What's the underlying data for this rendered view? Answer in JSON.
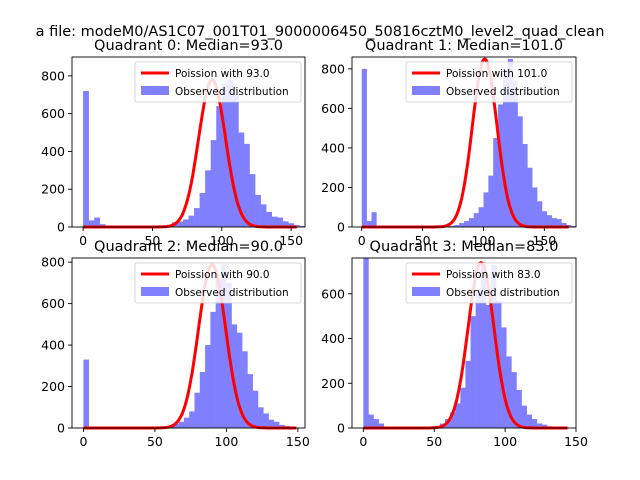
{
  "suptitle": "a file: modeM0/AS1C07_001T01_9000006450_50816cztM0_level2_quad_clean",
  "chart_data": [
    {
      "type": "bar",
      "title": "Quadrant 0: Median=93.0",
      "fit_label": "Poission with 93.0",
      "hist_label": "Observed distribution",
      "median": 93.0,
      "xlim": [
        -8,
        160
      ],
      "ylim": [
        0,
        900
      ],
      "xticks": [
        0,
        50,
        100,
        150
      ],
      "yticks": [
        0,
        200,
        400,
        600,
        800
      ],
      "bin_start": 0,
      "bin_width": 4,
      "values": [
        720,
        35,
        50,
        15,
        2,
        2,
        2,
        3,
        2,
        3,
        5,
        5,
        5,
        3,
        5,
        10,
        25,
        30,
        40,
        60,
        100,
        180,
        300,
        460,
        640,
        760,
        780,
        700,
        500,
        440,
        280,
        170,
        120,
        80,
        55,
        50,
        30,
        20,
        10,
        5
      ],
      "series": [
        {
          "name": "Poission with 93.0",
          "color": "#ff0000",
          "kind": "line"
        },
        {
          "name": "Observed distribution",
          "color": "#8080ff",
          "kind": "bar"
        }
      ]
    },
    {
      "type": "bar",
      "title": "Quadrant 1: Median=101.0",
      "fit_label": "Poission with 101.0",
      "hist_label": "Observed distribution",
      "median": 101.0,
      "xlim": [
        -8,
        176
      ],
      "ylim": [
        0,
        860
      ],
      "xticks": [
        0,
        50,
        100,
        150
      ],
      "yticks": [
        0,
        200,
        400,
        600,
        800
      ],
      "bin_start": 0,
      "bin_width": 4,
      "values": [
        800,
        30,
        75,
        5,
        2,
        2,
        2,
        2,
        2,
        2,
        3,
        3,
        3,
        3,
        3,
        3,
        3,
        3,
        5,
        10,
        20,
        30,
        45,
        70,
        100,
        175,
        260,
        450,
        620,
        800,
        850,
        740,
        560,
        420,
        300,
        200,
        130,
        80,
        60,
        45,
        40,
        20,
        10,
        5
      ],
      "series": [
        {
          "name": "Poission with 101.0",
          "color": "#ff0000",
          "kind": "line"
        },
        {
          "name": "Observed distribution",
          "color": "#8080ff",
          "kind": "bar"
        }
      ]
    },
    {
      "type": "bar",
      "title": "Quadrant 2: Median=90.0",
      "fit_label": "Poission with 90.0",
      "hist_label": "Observed distribution",
      "median": 90.0,
      "xlim": [
        -8,
        155
      ],
      "ylim": [
        0,
        820
      ],
      "xticks": [
        0,
        50,
        100,
        150
      ],
      "yticks": [
        0,
        200,
        400,
        600,
        800
      ],
      "bin_start": 0,
      "bin_width": 3.7,
      "values": [
        330,
        3,
        2,
        2,
        2,
        2,
        2,
        2,
        2,
        2,
        2,
        2,
        2,
        2,
        3,
        5,
        10,
        20,
        30,
        50,
        80,
        170,
        270,
        400,
        560,
        720,
        790,
        700,
        500,
        460,
        370,
        260,
        180,
        100,
        70,
        40,
        30,
        15,
        10,
        5
      ],
      "series": [
        {
          "name": "Poission with 90.0",
          "color": "#ff0000",
          "kind": "line"
        },
        {
          "name": "Observed distribution",
          "color": "#8080ff",
          "kind": "bar"
        }
      ]
    },
    {
      "type": "bar",
      "title": "Quadrant 3: Median=83.0",
      "fit_label": "Poission with 83.0",
      "hist_label": "Observed distribution",
      "median": 83.0,
      "xlim": [
        -8,
        150
      ],
      "ylim": [
        0,
        760
      ],
      "xticks": [
        0,
        50,
        100,
        150
      ],
      "yticks": [
        0,
        200,
        400,
        600
      ],
      "bin_start": 0,
      "bin_width": 3.6,
      "values": [
        760,
        60,
        40,
        20,
        5,
        3,
        2,
        2,
        2,
        2,
        2,
        2,
        3,
        5,
        10,
        20,
        40,
        70,
        110,
        180,
        300,
        500,
        620,
        740,
        550,
        730,
        570,
        450,
        320,
        250,
        170,
        100,
        60,
        40,
        20,
        15,
        8,
        4
      ],
      "series": [
        {
          "name": "Poission with 83.0",
          "color": "#ff0000",
          "kind": "line"
        },
        {
          "name": "Observed distribution",
          "color": "#8080ff",
          "kind": "bar"
        }
      ]
    }
  ]
}
